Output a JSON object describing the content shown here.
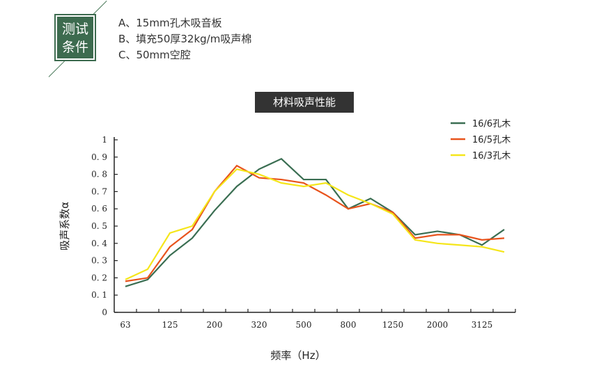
{
  "badge": {
    "line1": "测试",
    "line2": "条件"
  },
  "conditions": [
    "A、15mm孔木吸音板",
    "B、填充50厚32kg/m吸声棉",
    "C、50mm空腔"
  ],
  "chart_data": {
    "type": "line",
    "title": "材料吸声性能",
    "xlabel": "频率（Hz）",
    "ylabel": "吸声系数α",
    "categories": [
      "63",
      "",
      "125",
      "",
      "200",
      "",
      "320",
      "",
      "500",
      "",
      "800",
      "",
      "1250",
      "",
      "2000",
      "",
      "3125",
      ""
    ],
    "ylim": [
      0,
      1
    ],
    "yticks": [
      "0",
      "0. 1",
      "0. 2",
      "0. 3",
      "0. 4",
      "0. 5",
      "0. 6",
      "0. 7",
      "0. 8",
      "0. 9",
      "1"
    ],
    "grid": false,
    "legend": "top-right",
    "series": [
      {
        "name": "16/6孔木",
        "color": "#3a6e52",
        "values": [
          0.15,
          0.19,
          0.33,
          0.43,
          0.59,
          0.73,
          0.83,
          0.89,
          0.77,
          0.77,
          0.6,
          0.66,
          0.58,
          0.45,
          0.47,
          0.45,
          0.39,
          0.48
        ]
      },
      {
        "name": "16/5孔木",
        "color": "#e8531c",
        "values": [
          0.18,
          0.2,
          0.38,
          0.48,
          0.7,
          0.85,
          0.78,
          0.77,
          0.75,
          0.68,
          0.6,
          0.63,
          0.58,
          0.43,
          0.45,
          0.45,
          0.42,
          0.43
        ]
      },
      {
        "name": "16/3孔木",
        "color": "#f5e61a",
        "values": [
          0.19,
          0.25,
          0.46,
          0.5,
          0.7,
          0.83,
          0.8,
          0.75,
          0.73,
          0.75,
          0.68,
          0.63,
          0.57,
          0.42,
          0.4,
          0.39,
          0.38,
          0.35
        ]
      }
    ]
  }
}
